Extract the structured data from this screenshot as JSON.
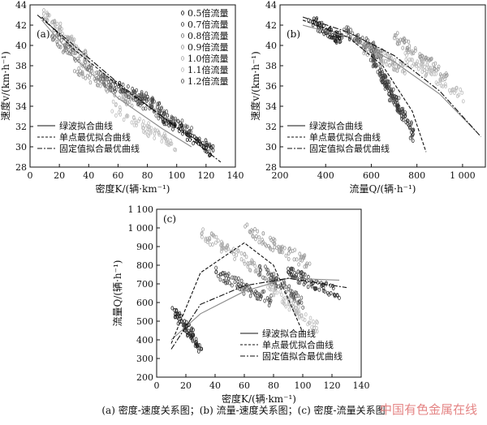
{
  "caption": "(a) 密度-速度关系图；(b) 流量-速度关系图；(c) 密度-流量关系图",
  "watermark": "中国有色金属在线",
  "charts": [
    {
      "id": "a",
      "panel_label": "(a)",
      "type": "scatter",
      "xlabel": "密度K/(辆·km⁻¹)",
      "ylabel": "速度v/(km·h⁻¹)",
      "xlim": [
        0,
        140
      ],
      "ylim": [
        28,
        44
      ],
      "xticks": [
        0,
        20,
        40,
        60,
        80,
        100,
        120,
        140
      ],
      "yticks": [
        28,
        30,
        32,
        34,
        36,
        38,
        40,
        42,
        44
      ],
      "scatter_legend": [
        "0.5倍流量",
        "0.7倍流量",
        "0.8倍流量",
        "0.9倍流量",
        "1.0倍流量",
        "1.1倍流量",
        "1.2倍流量"
      ],
      "line_legend": [
        "绿波拟合曲线",
        "单点最优拟合曲线",
        "固定值拟合最优曲线"
      ],
      "lines": [
        {
          "name": "绿波拟合曲线",
          "style": "solid",
          "x": [
            8,
            30,
            60,
            90,
            110
          ],
          "y": [
            42.5,
            38.8,
            34.8,
            31.8,
            30.0
          ]
        },
        {
          "name": "单点最优拟合曲线",
          "style": "dashed",
          "x": [
            8,
            30,
            60,
            90,
            120
          ],
          "y": [
            42.8,
            39.6,
            36.1,
            33.0,
            30.0
          ]
        },
        {
          "name": "固定值拟合最优曲线",
          "style": "dashdot",
          "x": [
            5,
            30,
            60,
            90,
            130
          ],
          "y": [
            43.0,
            40.0,
            36.3,
            33.0,
            28.5
          ]
        }
      ],
      "clusters": [
        {
          "shade": "#aaaaaa",
          "x": [
            10,
            40
          ],
          "y": [
            43,
            38.5
          ]
        },
        {
          "shade": "#999999",
          "x": [
            30,
            70
          ],
          "y": [
            38,
            34.5
          ]
        },
        {
          "shade": "#444444",
          "x": [
            50,
            90
          ],
          "y": [
            36.5,
            34
          ]
        },
        {
          "shade": "#555555",
          "x": [
            70,
            110
          ],
          "y": [
            35,
            31.5
          ]
        },
        {
          "shade": "#222222",
          "x": [
            90,
            125
          ],
          "y": [
            33,
            29.5
          ]
        },
        {
          "shade": "#bbbbbb",
          "x": [
            55,
            100
          ],
          "y": [
            34,
            30
          ]
        },
        {
          "shade": "#777777",
          "x": [
            15,
            55
          ],
          "y": [
            41,
            36
          ]
        }
      ]
    },
    {
      "id": "b",
      "panel_label": "(b)",
      "type": "scatter",
      "xlabel": "流量Q/(辆·h⁻¹)",
      "ylabel": "速度v/(km·h⁻¹)",
      "xlim": [
        200,
        1100
      ],
      "ylim": [
        28,
        44
      ],
      "xticks": [
        200,
        400,
        600,
        800,
        1000
      ],
      "xtick_labels": [
        "200",
        "400",
        "600",
        "800",
        "1 000"
      ],
      "yticks": [
        28,
        30,
        32,
        34,
        36,
        38,
        40,
        42,
        44
      ],
      "line_legend": [
        "绿波拟合曲线",
        "单点最优拟合曲线",
        "固定值拟合最优曲线"
      ],
      "lines": [
        {
          "name": "绿波拟合曲线",
          "style": "solid",
          "x": [
            300,
            500,
            700,
            900,
            1060
          ],
          "y": [
            42.0,
            40.8,
            38.4,
            35.2,
            31.5
          ]
        },
        {
          "name": "单点最优拟合曲线",
          "style": "dashed",
          "x": [
            300,
            500,
            650,
            780,
            840
          ],
          "y": [
            42.5,
            40.8,
            38.0,
            33.5,
            29.5
          ]
        },
        {
          "name": "固定值拟合最优曲线",
          "style": "dashdot",
          "x": [
            300,
            500,
            700,
            900,
            1080
          ],
          "y": [
            42.8,
            41.3,
            39.0,
            35.5,
            31.0
          ]
        }
      ],
      "clusters": [
        {
          "shade": "#222222",
          "x": [
            330,
            470
          ],
          "y": [
            42.5,
            40.5
          ]
        },
        {
          "shade": "#555555",
          "x": [
            480,
            650
          ],
          "y": [
            41.5,
            39
          ]
        },
        {
          "shade": "#aaaaaa",
          "x": [
            550,
            760
          ],
          "y": [
            40,
            37.5
          ]
        },
        {
          "shade": "#999999",
          "x": [
            700,
            930
          ],
          "y": [
            41,
            37
          ]
        },
        {
          "shade": "#333333",
          "x": [
            640,
            790
          ],
          "y": [
            37,
            31
          ]
        },
        {
          "shade": "#444444",
          "x": [
            600,
            720
          ],
          "y": [
            39,
            34
          ]
        },
        {
          "shade": "#bbbbbb",
          "x": [
            750,
            1000
          ],
          "y": [
            39,
            35
          ]
        }
      ]
    },
    {
      "id": "c",
      "panel_label": "(c)",
      "type": "scatter",
      "xlabel": "密度K/(辆·km⁻¹)",
      "ylabel": "流量Q/(辆·h⁻¹)",
      "xlim": [
        0,
        140
      ],
      "ylim": [
        200,
        1100
      ],
      "xticks": [
        0,
        20,
        40,
        60,
        80,
        100,
        120,
        140
      ],
      "yticks": [
        200,
        300,
        400,
        500,
        600,
        700,
        800,
        900,
        1000,
        1100
      ],
      "ytick_labels": [
        "200",
        "300",
        "400",
        "500",
        "600",
        "700",
        "800",
        "900",
        "1 000",
        "1 100"
      ],
      "line_legend": [
        "绿波拟合曲线",
        "单点最优拟合曲线",
        "固定值拟合最优曲线"
      ],
      "lines": [
        {
          "name": "绿波拟合曲线",
          "style": "solid",
          "x": [
            10,
            30,
            60,
            90,
            125
          ],
          "y": [
            400,
            540,
            660,
            730,
            720
          ]
        },
        {
          "name": "单点最优拟合曲线",
          "style": "dashed",
          "x": [
            10,
            30,
            60,
            80,
            100
          ],
          "y": [
            380,
            760,
            920,
            800,
            440
          ]
        },
        {
          "name": "固定值拟合最优曲线",
          "style": "dashdot",
          "x": [
            10,
            30,
            60,
            90,
            130
          ],
          "y": [
            350,
            590,
            690,
            730,
            680
          ]
        }
      ],
      "clusters": [
        {
          "shade": "#222222",
          "x": [
            12,
            30
          ],
          "y": [
            560,
            360
          ]
        },
        {
          "shade": "#aaaaaa",
          "x": [
            30,
            70
          ],
          "y": [
            980,
            780
          ]
        },
        {
          "shade": "#999999",
          "x": [
            60,
            105
          ],
          "y": [
            1000,
            800
          ]
        },
        {
          "shade": "#444444",
          "x": [
            40,
            80
          ],
          "y": [
            760,
            600
          ]
        },
        {
          "shade": "#555555",
          "x": [
            70,
            100
          ],
          "y": [
            780,
            600
          ]
        },
        {
          "shade": "#333333",
          "x": [
            90,
            125
          ],
          "y": [
            760,
            650
          ]
        },
        {
          "shade": "#bbbbbb",
          "x": [
            75,
            110
          ],
          "y": [
            700,
            460
          ]
        }
      ]
    }
  ]
}
